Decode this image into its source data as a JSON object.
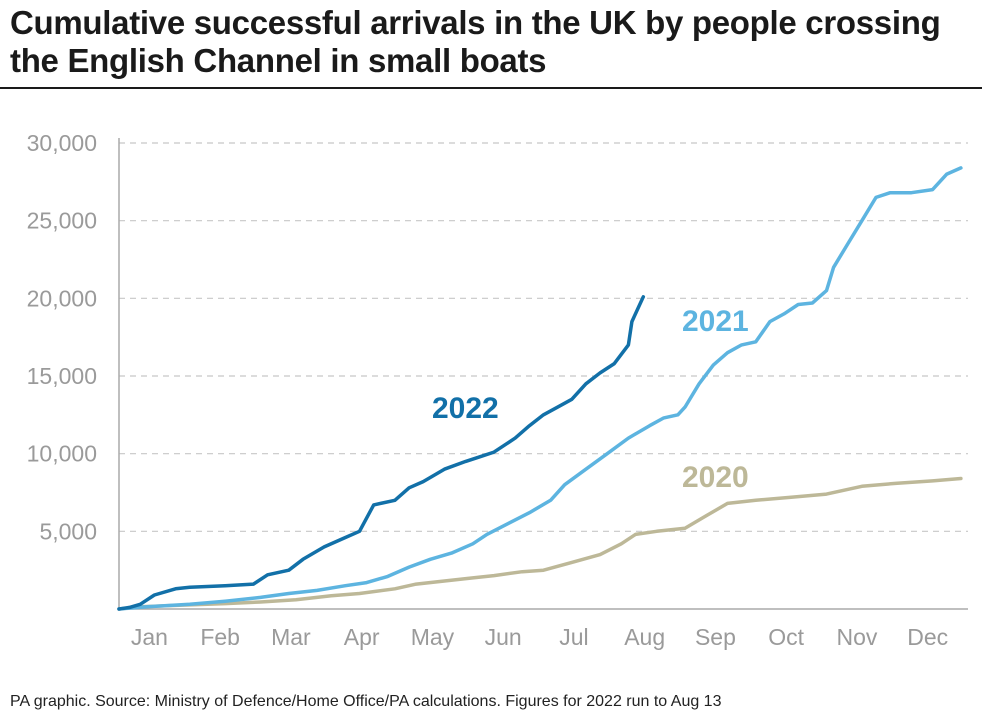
{
  "title": "Cumulative successful arrivals in the UK by people crossing the English Channel in small boats",
  "source": "PA graphic. Source: Ministry of Defence/Home Office/PA calculations. Figures for 2022 run to Aug 13",
  "chart_data": {
    "type": "line",
    "title": "Cumulative successful arrivals in the UK by people crossing the English Channel in small boats",
    "xlabel": "",
    "ylabel": "",
    "x_unit": "month (0 = Jan 1, 12 = Dec 31)",
    "xlim": [
      0,
      12
    ],
    "ylim": [
      0,
      30000
    ],
    "yticks": [
      0,
      5000,
      10000,
      15000,
      20000,
      25000,
      30000
    ],
    "ytick_labels": [
      "",
      "5,000",
      "10,000",
      "15,000",
      "20,000",
      "25,000",
      "30,000"
    ],
    "xtick_labels": [
      "Jan",
      "Feb",
      "Mar",
      "Apr",
      "May",
      "Jun",
      "Jul",
      "Aug",
      "Sep",
      "Oct",
      "Nov",
      "Dec"
    ],
    "grid": true,
    "colors": {
      "2022": "#1270a8",
      "2021": "#5db4e0",
      "2020": "#bdb898",
      "axis": "#aaaaaa",
      "grid": "#c8c8c8",
      "tick_text": "#9a9a9a"
    },
    "series": [
      {
        "name": "2020",
        "label": "2020",
        "x": [
          0,
          0.3,
          0.9,
          1.5,
          2.0,
          2.5,
          3.0,
          3.4,
          3.9,
          4.2,
          4.6,
          5.0,
          5.3,
          5.7,
          6.0,
          6.4,
          6.8,
          7.1,
          7.3,
          7.6,
          8.0,
          8.3,
          8.6,
          9.0,
          9.5,
          10.0,
          10.5,
          11.0,
          11.5,
          11.9
        ],
        "y": [
          0,
          150,
          250,
          350,
          450,
          600,
          850,
          1000,
          1300,
          1600,
          1800,
          2000,
          2150,
          2400,
          2500,
          3000,
          3500,
          4200,
          4800,
          5000,
          5200,
          6000,
          6800,
          7000,
          7200,
          7400,
          7900,
          8100,
          8250,
          8400
        ]
      },
      {
        "name": "2021",
        "label": "2021",
        "x": [
          0,
          0.4,
          1.0,
          1.5,
          2.0,
          2.4,
          2.8,
          3.2,
          3.5,
          3.8,
          4.1,
          4.4,
          4.7,
          5.0,
          5.2,
          5.5,
          5.8,
          6.1,
          6.3,
          6.6,
          6.9,
          7.2,
          7.5,
          7.7,
          7.9,
          8.0,
          8.2,
          8.4,
          8.6,
          8.8,
          9.0,
          9.2,
          9.4,
          9.6,
          9.8,
          10.0,
          10.1,
          10.3,
          10.5,
          10.7,
          10.9,
          11.2,
          11.5,
          11.7,
          11.9
        ],
        "y": [
          0,
          150,
          300,
          500,
          750,
          1000,
          1200,
          1500,
          1700,
          2100,
          2700,
          3200,
          3600,
          4200,
          4800,
          5500,
          6200,
          7000,
          8000,
          9000,
          10000,
          11000,
          11800,
          12300,
          12500,
          13000,
          14500,
          15700,
          16500,
          17000,
          17200,
          18500,
          19000,
          19600,
          19700,
          20500,
          22000,
          23500,
          25000,
          26500,
          26800,
          26800,
          27000,
          28000,
          28400
        ]
      },
      {
        "name": "2022",
        "label": "2022",
        "x": [
          0,
          0.15,
          0.3,
          0.5,
          0.8,
          1.0,
          1.5,
          1.9,
          2.1,
          2.4,
          2.6,
          2.9,
          3.2,
          3.4,
          3.6,
          3.9,
          4.1,
          4.3,
          4.6,
          4.9,
          5.1,
          5.3,
          5.6,
          5.8,
          6.0,
          6.2,
          6.4,
          6.6,
          6.8,
          7.0,
          7.2,
          7.25,
          7.41
        ],
        "y": [
          0,
          100,
          300,
          900,
          1300,
          1400,
          1500,
          1600,
          2200,
          2500,
          3200,
          4000,
          4600,
          5000,
          6700,
          7000,
          7800,
          8200,
          9000,
          9500,
          9800,
          10100,
          11000,
          11800,
          12500,
          13000,
          13500,
          14500,
          15200,
          15800,
          17000,
          18500,
          20100
        ]
      }
    ],
    "annotations": [
      {
        "text": "2022",
        "series": "2022"
      },
      {
        "text": "2021",
        "series": "2021"
      },
      {
        "text": "2020",
        "series": "2020"
      }
    ]
  }
}
